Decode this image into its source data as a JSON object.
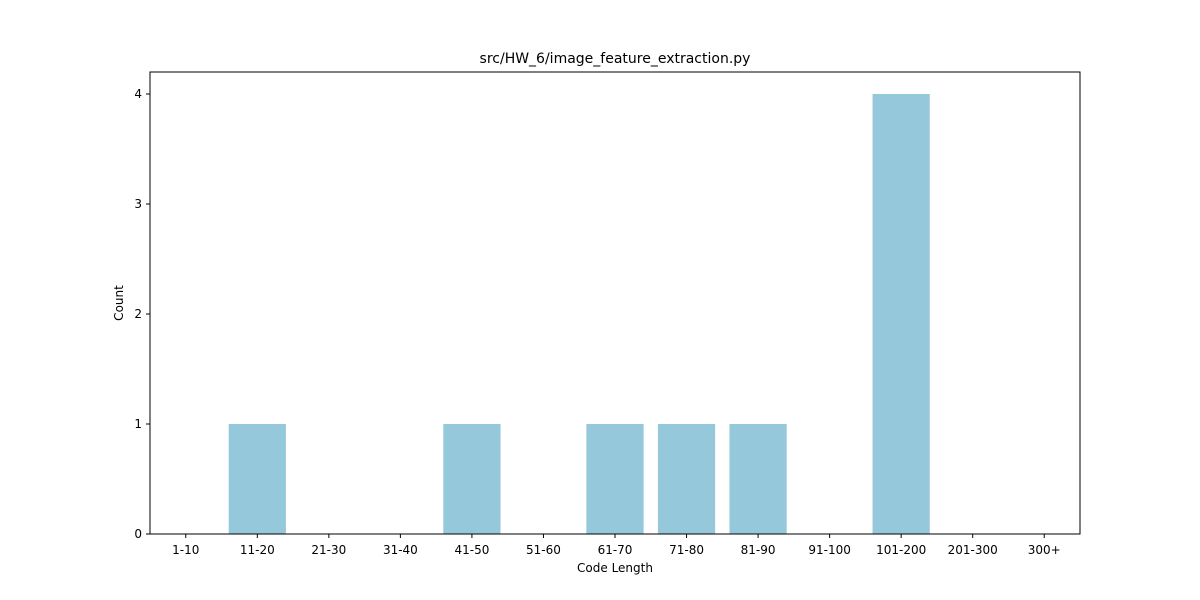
{
  "chart_data": {
    "type": "bar",
    "title": "src/HW_6/image_feature_extraction.py",
    "xlabel": "Code Length",
    "ylabel": "Count",
    "categories": [
      "1-10",
      "11-20",
      "21-30",
      "31-40",
      "41-50",
      "51-60",
      "61-70",
      "71-80",
      "81-90",
      "91-100",
      "101-200",
      "201-300",
      "300+"
    ],
    "values": [
      0,
      1,
      0,
      0,
      1,
      0,
      1,
      1,
      1,
      0,
      4,
      0,
      0
    ],
    "yticks": [
      "0",
      "1",
      "2",
      "3",
      "4"
    ],
    "ylim": [
      0,
      4.2
    ],
    "grid": false,
    "bar_color": "#96c8dc"
  }
}
